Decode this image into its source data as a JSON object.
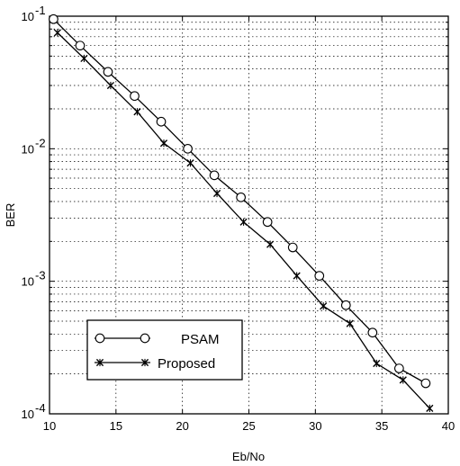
{
  "chart_data": {
    "type": "line",
    "title": "",
    "xlabel": "Eb/No",
    "ylabel": "BER",
    "xlim": [
      10,
      40
    ],
    "ylim": [
      0.0001,
      0.1
    ],
    "yscale": "log",
    "grid": true,
    "x_ticks": [
      10,
      15,
      20,
      25,
      30,
      35,
      40
    ],
    "x_tick_labels": [
      "10",
      "15",
      "20",
      "25",
      "30",
      "35",
      "40"
    ],
    "y_ticks": [
      0.1,
      0.01,
      0.001,
      0.0001
    ],
    "y_tick_bases": [
      "10",
      "10",
      "10",
      "10"
    ],
    "y_tick_exponents": [
      "-1",
      "-2",
      "-3",
      "-4"
    ],
    "legend_position": "bottom-left",
    "series": [
      {
        "name": "PSAM",
        "marker": "circle",
        "x": [
          10.3,
          12.3,
          14.4,
          16.4,
          18.4,
          20.4,
          22.4,
          24.4,
          26.4,
          28.3,
          30.3,
          32.3,
          34.3,
          36.3,
          38.3
        ],
        "y": [
          0.095,
          0.06,
          0.038,
          0.025,
          0.016,
          0.01,
          0.0063,
          0.0043,
          0.0028,
          0.0018,
          0.0011,
          0.00066,
          0.00041,
          0.00022,
          0.00017
        ]
      },
      {
        "name": "Proposed",
        "marker": "x",
        "x": [
          10.6,
          12.6,
          14.6,
          16.6,
          18.6,
          20.6,
          22.6,
          24.6,
          26.6,
          28.6,
          30.6,
          32.6,
          34.6,
          36.6,
          38.6
        ],
        "y": [
          0.075,
          0.048,
          0.03,
          0.019,
          0.011,
          0.0078,
          0.0046,
          0.0028,
          0.0019,
          0.0011,
          0.00065,
          0.00048,
          0.00024,
          0.00018,
          0.00011
        ]
      }
    ]
  }
}
